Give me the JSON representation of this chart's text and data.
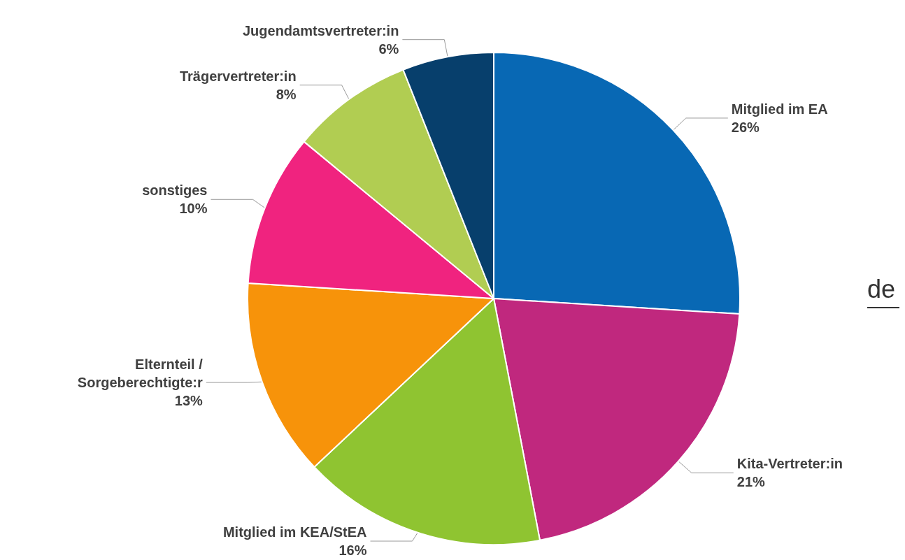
{
  "chart_data": {
    "type": "pie",
    "categories": [
      "Mitglied im EA",
      "Kita-Vertreter:in",
      "Mitglied im KEA/StEA",
      "Elternteil / Sorgeberechtigte:r",
      "sonstiges",
      "Trägervertreter:in",
      "Jugendamtsvertreter:in"
    ],
    "values": [
      26,
      21,
      16,
      13,
      10,
      8,
      6
    ],
    "value_labels": [
      "26%",
      "21%",
      "16%",
      "13%",
      "10%",
      "8%",
      "6%"
    ],
    "colors": [
      "#0868b4",
      "#c0287e",
      "#8fc431",
      "#f7930a",
      "#f0237f",
      "#b1cd52",
      "#073f6c"
    ],
    "annotations": [
      "de"
    ],
    "legend": false
  }
}
